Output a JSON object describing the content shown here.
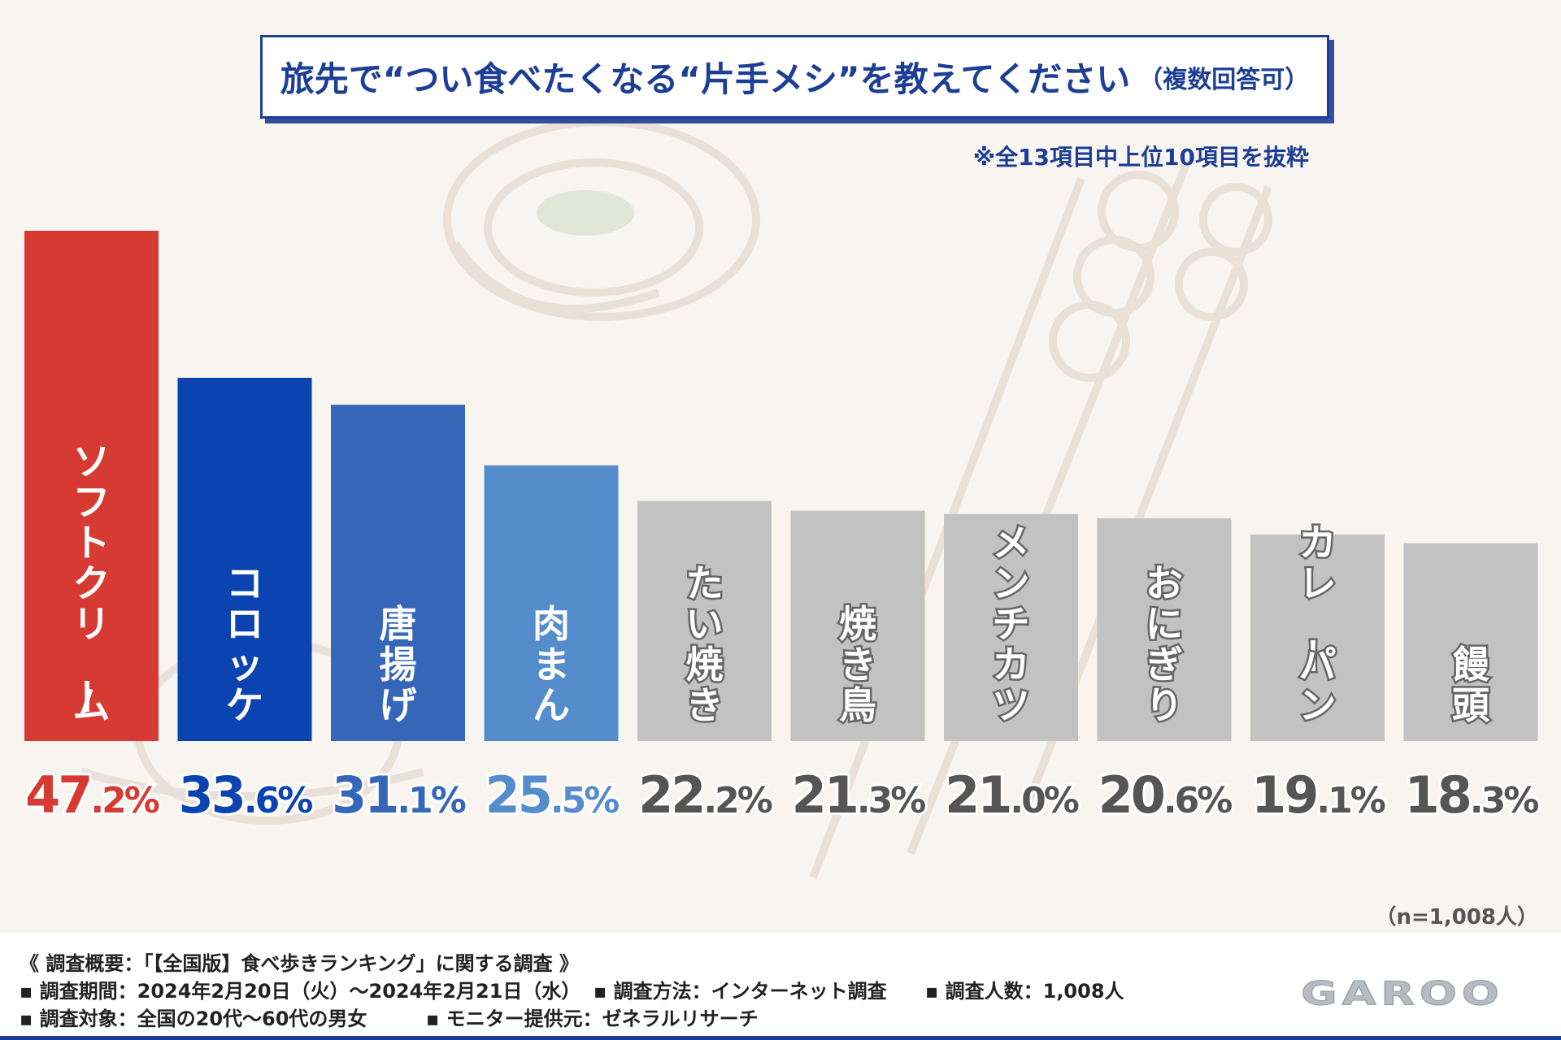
{
  "title": {
    "main": "旅先で“つい食べたくなる“片手メシ”を教えてください",
    "sub": "（複数回答可）"
  },
  "note": "※全13項目中上位10項目を抜粋",
  "sample_size": "（n=1,008人）",
  "colors": {
    "rank1": "#d63a32",
    "rank2": "#0b43b0",
    "rank3": "#3566b8",
    "rank4": "#558ccc",
    "others": "#c2c2c2",
    "value_others": "#555555",
    "brand_blue": "#1d3e96"
  },
  "chart_data": {
    "type": "bar",
    "title": "旅先で“つい食べたくなる“片手メシ”を教えてください（複数回答可）",
    "categories": [
      "ソフトクリーム",
      "コロッケ",
      "唐揚げ",
      "肉まん",
      "たい焼き",
      "焼き鳥",
      "メンチカツ",
      "おにぎり",
      "カレーパン",
      "饅頭"
    ],
    "values": [
      47.2,
      33.6,
      31.1,
      25.5,
      22.2,
      21.3,
      21.0,
      20.6,
      19.1,
      18.3
    ],
    "value_labels": [
      "47.2%",
      "33.6%",
      "31.1%",
      "25.5%",
      "22.2%",
      "21.3%",
      "21.0%",
      "20.6%",
      "19.1%",
      "18.3%"
    ],
    "unit": "%",
    "xlabel": "",
    "ylabel": "",
    "grid": false
  },
  "footer": {
    "heading": "《 調査概要：「【全国版】食べ歩きランキング」に関する調査 》",
    "period": "▪ 調査期間：2024年2月20日（火）～2024年2月21日（水）",
    "method": "▪ 調査方法：インターネット調査",
    "count": "▪ 調査人数：1,008人",
    "target": "▪ 調査対象：全国の20代～60代の男女",
    "provider": "▪ モニター提供元：ゼネラルリサーチ",
    "logo": "GAROO"
  }
}
